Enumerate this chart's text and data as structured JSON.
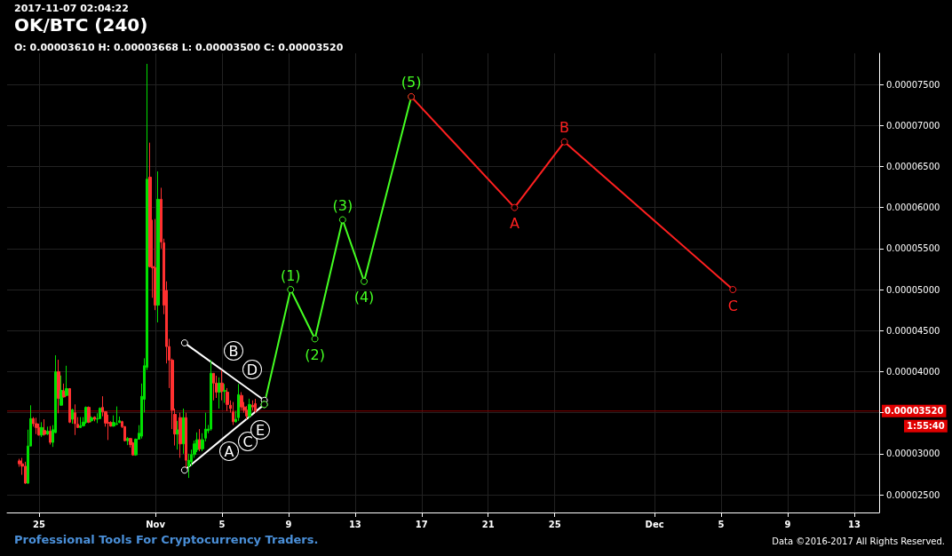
{
  "chart_data": {
    "type": "candlestick",
    "title": "OK/BTC (240)",
    "subtitle": "2017-11-07 02:04:22",
    "x": [
      "2017-10-23T20:00",
      "2017-10-24T00:00",
      "2017-10-24T04:00",
      "2017-10-24T08:00",
      "2017-10-24T12:00",
      "2017-10-24T16:00",
      "2017-10-24T20:00",
      "2017-10-25T00:00",
      "2017-10-25T04:00",
      "2017-10-25T08:00",
      "2017-10-25T12:00",
      "2017-10-25T16:00",
      "2017-10-25T20:00",
      "2017-10-26T00:00",
      "2017-10-26T04:00",
      "2017-10-26T08:00",
      "2017-10-26T12:00",
      "2017-10-26T16:00",
      "2017-10-26T20:00",
      "2017-10-27T00:00",
      "2017-10-27T04:00",
      "2017-10-27T08:00",
      "2017-10-27T12:00",
      "2017-10-27T16:00",
      "2017-10-27T20:00",
      "2017-10-28T00:00",
      "2017-10-28T04:00",
      "2017-10-28T08:00",
      "2017-10-28T12:00",
      "2017-10-28T16:00",
      "2017-10-28T20:00",
      "2017-10-29T00:00",
      "2017-10-29T04:00",
      "2017-10-29T08:00",
      "2017-10-29T12:00",
      "2017-10-29T16:00",
      "2017-10-29T20:00",
      "2017-10-30T00:00",
      "2017-10-30T04:00",
      "2017-10-30T08:00",
      "2017-10-30T12:00",
      "2017-10-30T16:00",
      "2017-10-30T20:00",
      "2017-10-31T00:00",
      "2017-10-31T04:00",
      "2017-10-31T08:00",
      "2017-10-31T12:00",
      "2017-10-31T16:00",
      "2017-10-31T20:00",
      "2017-11-01T00:00",
      "2017-11-01T04:00",
      "2017-11-01T08:00",
      "2017-11-01T12:00",
      "2017-11-01T16:00",
      "2017-11-01T20:00",
      "2017-11-02T00:00",
      "2017-11-02T04:00",
      "2017-11-02T08:00",
      "2017-11-02T12:00",
      "2017-11-02T16:00",
      "2017-11-02T20:00",
      "2017-11-03T00:00",
      "2017-11-03T04:00",
      "2017-11-03T08:00",
      "2017-11-03T12:00",
      "2017-11-03T16:00",
      "2017-11-03T20:00",
      "2017-11-04T00:00",
      "2017-11-04T04:00",
      "2017-11-04T08:00",
      "2017-11-04T12:00",
      "2017-11-04T16:00",
      "2017-11-04T20:00",
      "2017-11-05T00:00",
      "2017-11-05T04:00",
      "2017-11-05T08:00",
      "2017-11-05T12:00",
      "2017-11-05T16:00",
      "2017-11-05T20:00",
      "2017-11-06T00:00",
      "2017-11-06T04:00",
      "2017-11-06T08:00",
      "2017-11-06T12:00",
      "2017-11-06T16:00",
      "2017-11-06T20:00",
      "2017-11-07T00:00"
    ],
    "ohlc": [
      [
        2.913e-05,
        2.938e-05,
        2.841e-05,
        2.877e-05
      ],
      [
        2.877e-05,
        2.949e-05,
        2.743e-05,
        2.848e-05
      ],
      [
        2.848e-05,
        2.902e-05,
        2.634e-05,
        2.641e-05
      ],
      [
        2.641e-05,
        3.293e-05,
        2.634e-05,
        3.094e-05
      ],
      [
        3.094e-05,
        3.59e-05,
        3.094e-05,
        3.428e-05
      ],
      [
        3.428e-05,
        3.446e-05,
        3.33e-05,
        3.366e-05
      ],
      [
        3.366e-05,
        3.438e-05,
        3.239e-05,
        3.319e-05
      ],
      [
        3.319e-05,
        3.366e-05,
        3.221e-05,
        3.228e-05
      ],
      [
        3.228e-05,
        3.384e-05,
        3.203e-05,
        3.319e-05
      ],
      [
        3.283e-05,
        3.42e-05,
        3.221e-05,
        3.236e-05
      ],
      [
        3.239e-05,
        3.33e-05,
        3.228e-05,
        3.275e-05
      ],
      [
        3.275e-05,
        3.337e-05,
        3.112e-05,
        3.138e-05
      ],
      [
        3.138e-05,
        3.348e-05,
        3.083e-05,
        3.293e-05
      ],
      [
        3.257e-05,
        4.199e-05,
        3.25e-05,
        4e-05
      ],
      [
        4e-05,
        4.145e-05,
        3.493e-05,
        3.674e-05
      ],
      [
        3.591e-05,
        3.953e-05,
        3.583e-05,
        3.772e-05
      ],
      [
        3.765e-05,
        3.855e-05,
        3.685e-05,
        3.692e-05
      ],
      [
        3.71e-05,
        4.072e-05,
        3.699e-05,
        3.793e-05
      ],
      [
        3.793e-05,
        3.8e-05,
        3.373e-05,
        3.384e-05
      ],
      [
        3.42e-05,
        3.547e-05,
        3.366e-05,
        3.536e-05
      ],
      [
        3.5e-05,
        3.601e-05,
        3.228e-05,
        3.366e-05
      ],
      [
        3.359e-05,
        3.446e-05,
        3.312e-05,
        3.319e-05
      ],
      [
        3.319e-05,
        3.446e-05,
        3.312e-05,
        3.341e-05
      ],
      [
        3.341e-05,
        3.446e-05,
        3.33e-05,
        3.384e-05
      ],
      [
        3.384e-05,
        3.576e-05,
        3.366e-05,
        3.565e-05
      ],
      [
        3.565e-05,
        3.576e-05,
        3.373e-05,
        3.384e-05
      ],
      [
        3.402e-05,
        3.456e-05,
        3.384e-05,
        3.438e-05
      ],
      [
        3.446e-05,
        3.456e-05,
        3.395e-05,
        3.42e-05
      ],
      [
        3.42e-05,
        3.493e-05,
        3.373e-05,
        3.428e-05
      ],
      [
        3.428e-05,
        3.565e-05,
        3.42e-05,
        3.554e-05
      ],
      [
        3.565e-05,
        3.7e-05,
        3.456e-05,
        3.511e-05
      ],
      [
        3.511e-05,
        3.511e-05,
        3.33e-05,
        3.373e-05
      ],
      [
        3.38e-05,
        3.475e-05,
        3.167e-05,
        3.373e-05
      ],
      [
        3.38e-05,
        3.395e-05,
        3.33e-05,
        3.337e-05
      ],
      [
        3.337e-05,
        3.467e-05,
        3.33e-05,
        3.38e-05
      ],
      [
        3.359e-05,
        3.576e-05,
        3.348e-05,
        3.366e-05
      ],
      [
        3.38e-05,
        3.453e-05,
        3.373e-05,
        3.402e-05
      ],
      [
        3.391e-05,
        3.402e-05,
        3.312e-05,
        3.33e-05
      ],
      [
        3.33e-05,
        3.337e-05,
        3.149e-05,
        3.159e-05
      ],
      [
        3.159e-05,
        3.203e-05,
        3.105e-05,
        3.185e-05
      ],
      [
        3.185e-05,
        3.192e-05,
        3.076e-05,
        3.112e-05
      ],
      [
        3.13e-05,
        3.141e-05,
        2.975e-05,
        2.986e-05
      ],
      [
        2.986e-05,
        3.185e-05,
        2.975e-05,
        3.177e-05
      ],
      [
        3.177e-05,
        3.348e-05,
        3.177e-05,
        3.25e-05
      ],
      [
        3.214e-05,
        3.855e-05,
        3.185e-05,
        3.699e-05
      ],
      [
        3.663e-05,
        4.163e-05,
        3.504e-05,
        4.072e-05
      ],
      [
        4.054e-05,
        7.75e-05,
        4.02e-05,
        6.345e-05
      ],
      [
        6.37e-05,
        6.79e-05,
        5.27e-05,
        5.28e-05
      ],
      [
        5.28e-05,
        5.85e-05,
        4.9e-05,
        5.265e-05
      ],
      [
        5.265e-05,
        5.86e-05,
        4.75e-05,
        4.81e-05
      ],
      [
        4.81e-05,
        6.44e-05,
        4.6e-05,
        6.1e-05
      ],
      [
        6.1e-05,
        6.24e-05,
        5.5e-05,
        5.58e-05
      ],
      [
        5.57e-05,
        5.62e-05,
        4.7e-05,
        4.81e-05
      ],
      [
        4.99e-05,
        5.1e-05,
        4.1e-05,
        4.306e-05
      ],
      [
        4.306e-05,
        4.4e-05,
        3.8e-05,
        4.14e-05
      ],
      [
        4.14e-05,
        4.16e-05,
        3.3e-05,
        3.53e-05
      ],
      [
        3.48e-05,
        3.55e-05,
        3.1e-05,
        3.24e-05
      ],
      [
        3.24e-05,
        3.4e-05,
        3.05e-05,
        3.29e-05
      ],
      [
        3.44e-05,
        3.5e-05,
        2.95e-05,
        3.12e-05
      ],
      [
        3.12e-05,
        3.55e-05,
        3e-05,
        3.44e-05
      ],
      [
        3.44e-05,
        3.5e-05,
        2.83e-05,
        2.92e-05
      ],
      [
        2.85e-05,
        3e-05,
        2.705e-05,
        2.92e-05
      ],
      [
        2.9e-05,
        3.05e-05,
        2.85e-05,
        2.99e-05
      ],
      [
        2.99e-05,
        3.16e-05,
        2.95e-05,
        3.12e-05
      ],
      [
        3.05e-05,
        3.26e-05,
        3.02e-05,
        3.17e-05
      ],
      [
        3.17e-05,
        3.3e-05,
        3.03e-05,
        3.06e-05
      ],
      [
        3.06e-05,
        3.25e-05,
        3.03e-05,
        3.17e-05
      ],
      [
        3.19e-05,
        3.5e-05,
        3.15e-05,
        3.3e-05
      ],
      [
        3.28e-05,
        3.35e-05,
        3.25e-05,
        3.3e-05
      ],
      [
        3.3e-05,
        4.14e-05,
        3.28e-05,
        3.98e-05
      ],
      [
        3.98e-05,
        3.98e-05,
        3.65e-05,
        3.86e-05
      ],
      [
        3.86e-05,
        3.95e-05,
        3.68e-05,
        3.75e-05
      ],
      [
        3.75e-05,
        3.93e-05,
        3.55e-05,
        3.86e-05
      ],
      [
        3.86e-05,
        4.02e-05,
        3.65e-05,
        3.76e-05
      ],
      [
        3.76e-05,
        3.85e-05,
        3.62e-05,
        3.77e-05
      ],
      [
        3.75e-05,
        3.8e-05,
        3.52e-05,
        3.6e-05
      ],
      [
        3.59e-05,
        3.65e-05,
        3.5e-05,
        3.55e-05
      ],
      [
        3.51e-05,
        3.63e-05,
        3.35e-05,
        3.39e-05
      ],
      [
        3.39e-05,
        3.52e-05,
        3.38e-05,
        3.42e-05
      ],
      [
        3.44e-05,
        3.85e-05,
        3.4e-05,
        3.72e-05
      ],
      [
        3.71e-05,
        3.75e-05,
        3.53e-05,
        3.57e-05
      ],
      [
        3.57e-05,
        3.63e-05,
        3.5e-05,
        3.53e-05
      ],
      [
        3.53e-05,
        3.58e-05,
        3.42e-05,
        3.46e-05
      ],
      [
        3.46e-05,
        3.67e-05,
        3.43e-05,
        3.6e-05
      ],
      [
        3.59e-05,
        3.65e-05,
        3.53e-05,
        3.57e-05
      ],
      [
        3.61e-05,
        3.668e-05,
        3.5e-05,
        3.52e-05
      ]
    ],
    "series": [
      {
        "type": "line",
        "color": "#ffffff",
        "x": [
          "2017-11-02T18:00",
          "2017-11-07T13:00"
        ],
        "values": [
          4.35e-05,
          3.65e-05
        ]
      },
      {
        "type": "line",
        "color": "#ffffff",
        "x": [
          "2017-11-02T18:00",
          "2017-11-07T13:00"
        ],
        "values": [
          2.8e-05,
          3.6e-05
        ]
      },
      {
        "type": "line",
        "color": "#44ff22",
        "x": [
          "2017-11-07T13:00",
          "2017-11-09T03:00",
          "2017-11-10T14:00",
          "2017-11-12T06:00",
          "2017-11-13T13:00",
          "2017-11-16T09:00"
        ],
        "values": [
          3.6e-05,
          5e-05,
          4.4e-05,
          5.85e-05,
          5.1e-05,
          7.35e-05
        ]
      },
      {
        "type": "line",
        "color": "#ff2020",
        "x": [
          "2017-11-16T09:00",
          "2017-11-22T14:00",
          "2017-11-25T14:00",
          "2017-12-05T17:00"
        ],
        "values": [
          7.35e-05,
          6e-05,
          6.8e-05,
          5e-05
        ]
      }
    ],
    "marker": "circle",
    "xlim": [
      "2017-10-23T02:00",
      "2017-12-14T12:00"
    ],
    "xticks": [
      {
        "value": "2017-10-25",
        "label": "25"
      },
      {
        "value": "2017-11-01",
        "label": "Nov"
      },
      {
        "value": "2017-11-05",
        "label": "5"
      },
      {
        "value": "2017-11-09",
        "label": "9"
      },
      {
        "value": "2017-11-13",
        "label": "13"
      },
      {
        "value": "2017-11-17",
        "label": "17"
      },
      {
        "value": "2017-11-21",
        "label": "21"
      },
      {
        "value": "2017-11-25",
        "label": "25"
      },
      {
        "value": "2017-12-01",
        "label": "Dec"
      },
      {
        "value": "2017-12-05",
        "label": "5"
      },
      {
        "value": "2017-12-09",
        "label": "9"
      },
      {
        "value": "2017-12-13",
        "label": "13"
      }
    ],
    "ylim": [
      2.284e-05,
      7.879e-05
    ],
    "yticks": [
      {
        "value": 2.5e-05,
        "label": "0.00002500"
      },
      {
        "value": 3e-05,
        "label": "0.00003000"
      },
      {
        "value": 3.5e-05,
        "label": null
      },
      {
        "value": 4e-05,
        "label": "0.00004000"
      },
      {
        "value": 4.5e-05,
        "label": "0.00004500"
      },
      {
        "value": 5e-05,
        "label": "0.00005000"
      },
      {
        "value": 5.5e-05,
        "label": "0.00005500"
      },
      {
        "value": 6e-05,
        "label": "0.00006000"
      },
      {
        "value": 6.5e-05,
        "label": "0.00006500"
      },
      {
        "value": 7e-05,
        "label": "0.00007000"
      },
      {
        "value": 7.5e-05,
        "label": "0.00007500"
      }
    ],
    "grid": true,
    "ref_lines": [
      {
        "axis": "y",
        "value": 3.52e-05,
        "label": "0.00003520",
        "color": "#8b0000"
      }
    ],
    "annotations": [
      "O: 0.00003610 H: 0.00003668 L: 0.00003500 C: 0.00003520",
      "1:55:40",
      "Professional Tools For Cryptocurrency Traders.",
      "Data ©2016-2017 All Rights Reserved.",
      "A",
      "B",
      "C",
      "D",
      "E",
      {
        "text": "(1)",
        "x": "2017-11-09T03:00",
        "y": 5e-05
      },
      {
        "text": "(2)",
        "x": "2017-11-10T14:00",
        "y": 4.4e-05
      },
      {
        "text": "(3)",
        "x": "2017-11-12T06:00",
        "y": 5.85e-05
      },
      {
        "text": "(4)",
        "x": "2017-11-13T13:00",
        "y": 5.1e-05
      },
      {
        "text": "(5)",
        "x": "2017-11-16T09:00",
        "y": 7.35e-05
      },
      {
        "text": "A",
        "x": "2017-11-22T14:00",
        "y": 6e-05
      },
      {
        "text": "B",
        "x": "2017-11-25T14:00",
        "y": 6.8e-05
      },
      {
        "text": "C",
        "x": "2017-12-05T17:00",
        "y": 5e-05
      }
    ]
  }
}
